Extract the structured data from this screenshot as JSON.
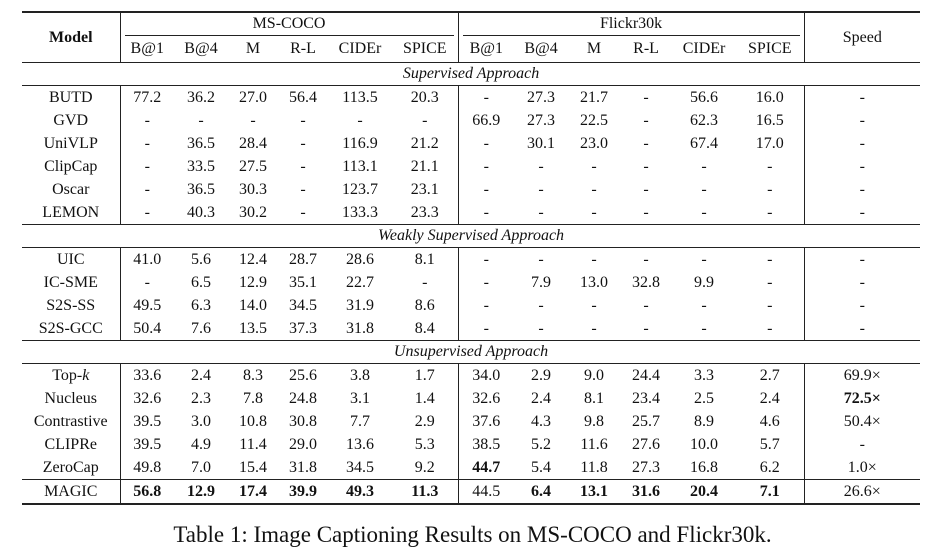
{
  "table": {
    "model_header": "Model",
    "speed_header": "Speed",
    "groups": [
      "MS-COCO",
      "Flickr30k"
    ],
    "metrics": [
      "B@1",
      "B@4",
      "M",
      "R-L",
      "CIDEr",
      "SPICE"
    ],
    "sections": [
      {
        "title": "Supervised Approach",
        "rows": [
          {
            "model": "BUTD",
            "values": [
              "77.2",
              "36.2",
              "27.0",
              "56.4",
              "113.5",
              "20.3",
              "-",
              "27.3",
              "21.7",
              "-",
              "56.6",
              "16.0"
            ],
            "speed": "-",
            "bold": []
          },
          {
            "model": "GVD",
            "values": [
              "-",
              "-",
              "-",
              "-",
              "-",
              "-",
              "66.9",
              "27.3",
              "22.5",
              "-",
              "62.3",
              "16.5"
            ],
            "speed": "-",
            "bold": []
          },
          {
            "model": "UniVLP",
            "values": [
              "-",
              "36.5",
              "28.4",
              "-",
              "116.9",
              "21.2",
              "-",
              "30.1",
              "23.0",
              "-",
              "67.4",
              "17.0"
            ],
            "speed": "-",
            "bold": []
          },
          {
            "model": "ClipCap",
            "values": [
              "-",
              "33.5",
              "27.5",
              "-",
              "113.1",
              "21.1",
              "-",
              "-",
              "-",
              "-",
              "-",
              "-"
            ],
            "speed": "-",
            "bold": []
          },
          {
            "model": "Oscar",
            "values": [
              "-",
              "36.5",
              "30.3",
              "-",
              "123.7",
              "23.1",
              "-",
              "-",
              "-",
              "-",
              "-",
              "-"
            ],
            "speed": "-",
            "bold": []
          },
          {
            "model": "LEMON",
            "values": [
              "-",
              "40.3",
              "30.2",
              "-",
              "133.3",
              "23.3",
              "-",
              "-",
              "-",
              "-",
              "-",
              "-"
            ],
            "speed": "-",
            "bold": []
          }
        ]
      },
      {
        "title": "Weakly Supervised Approach",
        "rows": [
          {
            "model": "UIC",
            "values": [
              "41.0",
              "5.6",
              "12.4",
              "28.7",
              "28.6",
              "8.1",
              "-",
              "-",
              "-",
              "-",
              "-",
              "-"
            ],
            "speed": "-",
            "bold": []
          },
          {
            "model": "IC-SME",
            "values": [
              "-",
              "6.5",
              "12.9",
              "35.1",
              "22.7",
              "-",
              "-",
              "7.9",
              "13.0",
              "32.8",
              "9.9",
              "-"
            ],
            "speed": "-",
            "bold": []
          },
          {
            "model": "S2S-SS",
            "values": [
              "49.5",
              "6.3",
              "14.0",
              "34.5",
              "31.9",
              "8.6",
              "-",
              "-",
              "-",
              "-",
              "-",
              "-"
            ],
            "speed": "-",
            "bold": []
          },
          {
            "model": "S2S-GCC",
            "values": [
              "50.4",
              "7.6",
              "13.5",
              "37.3",
              "31.8",
              "8.4",
              "-",
              "-",
              "-",
              "-",
              "-",
              "-"
            ],
            "speed": "-",
            "bold": []
          }
        ]
      },
      {
        "title": "Unsupervised Approach",
        "rows": [
          {
            "model": "Top-k",
            "values": [
              "33.6",
              "2.4",
              "8.3",
              "25.6",
              "3.8",
              "1.7",
              "34.0",
              "2.9",
              "9.0",
              "24.4",
              "3.3",
              "2.7"
            ],
            "speed": "69.9×",
            "bold": []
          },
          {
            "model": "Nucleus",
            "values": [
              "32.6",
              "2.3",
              "7.8",
              "24.8",
              "3.1",
              "1.4",
              "32.6",
              "2.4",
              "8.1",
              "23.4",
              "2.5",
              "2.4"
            ],
            "speed": "72.5×",
            "bold": [
              "speed"
            ]
          },
          {
            "model": "Contrastive",
            "values": [
              "39.5",
              "3.0",
              "10.8",
              "30.8",
              "7.7",
              "2.9",
              "37.6",
              "4.3",
              "9.8",
              "25.7",
              "8.9",
              "4.6"
            ],
            "speed": "50.4×",
            "bold": []
          },
          {
            "model": "CLIPRe",
            "values": [
              "39.5",
              "4.9",
              "11.4",
              "29.0",
              "13.6",
              "5.3",
              "38.5",
              "5.2",
              "11.6",
              "27.6",
              "10.0",
              "5.7"
            ],
            "speed": "-",
            "bold": []
          },
          {
            "model": "ZeroCap",
            "values": [
              "49.8",
              "7.0",
              "15.4",
              "31.8",
              "34.5",
              "9.2",
              "44.7",
              "5.4",
              "11.8",
              "27.3",
              "16.8",
              "6.2"
            ],
            "speed": "1.0×",
            "bold": [
              6
            ]
          },
          {
            "model": "MAGIC",
            "values": [
              "56.8",
              "12.9",
              "17.4",
              "39.9",
              "49.3",
              "11.3",
              "44.5",
              "6.4",
              "13.1",
              "31.6",
              "20.4",
              "7.1"
            ],
            "speed": "26.6×",
            "bold": [
              0,
              1,
              2,
              3,
              4,
              5,
              7,
              8,
              9,
              10,
              11
            ]
          }
        ]
      }
    ]
  },
  "caption": "Table 1: Image Captioning Results on MS-COCO and Flickr30k."
}
